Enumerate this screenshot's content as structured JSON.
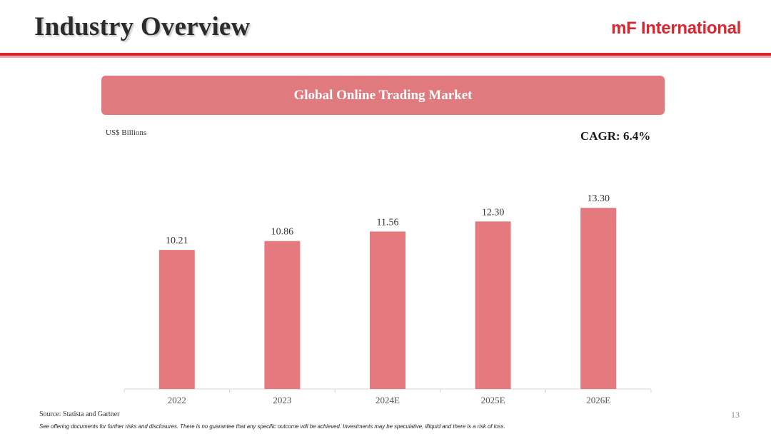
{
  "header": {
    "title": "Industry Overview",
    "brand": "mF International"
  },
  "banner": {
    "title": "Global Online Trading Market"
  },
  "units_label": "US$ Billions",
  "cagr_label": "CAGR: 6.4%",
  "chart_data": {
    "type": "bar",
    "categories": [
      "2022",
      "2023",
      "2024E",
      "2025E",
      "2026E"
    ],
    "values": [
      10.21,
      10.86,
      11.56,
      12.3,
      13.3
    ],
    "value_labels": [
      "10.21",
      "10.86",
      "11.56",
      "12.30",
      "13.30"
    ],
    "ylabel": "US$ Billions",
    "ylim": [
      0,
      14.2
    ],
    "grid": false,
    "bar_color": "#e57a7e"
  },
  "footer": {
    "source": "Source: Statista and Gartner",
    "page_number": "13",
    "disclaimer": "See offering documents for further risks and disclosures. There is no guarantee that any specific outcome will be achieved. Investments may be speculative, illiquid and there is a risk of loss."
  }
}
